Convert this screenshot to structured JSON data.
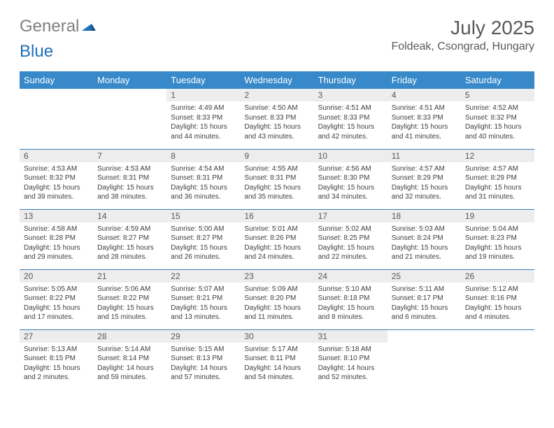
{
  "logo": {
    "gray": "General",
    "blue": "Blue"
  },
  "title": "July 2025",
  "location": "Foldeak, Csongrad, Hungary",
  "colors": {
    "header_bg": "#3789c9",
    "header_text": "#ffffff",
    "daynum_bg": "#ededed",
    "text_gray": "#595959",
    "border": "#3b7fb5",
    "logo_gray": "#808080",
    "logo_blue": "#1d6fb8"
  },
  "typography": {
    "title_fontsize": 28,
    "location_fontsize": 16,
    "weekday_fontsize": 13,
    "daynum_fontsize": 12,
    "body_fontsize": 10
  },
  "weekdays": [
    "Sunday",
    "Monday",
    "Tuesday",
    "Wednesday",
    "Thursday",
    "Friday",
    "Saturday"
  ],
  "weeks": [
    [
      null,
      null,
      {
        "n": "1",
        "sr": "Sunrise: 4:49 AM",
        "ss": "Sunset: 8:33 PM",
        "dl": "Daylight: 15 hours and 44 minutes."
      },
      {
        "n": "2",
        "sr": "Sunrise: 4:50 AM",
        "ss": "Sunset: 8:33 PM",
        "dl": "Daylight: 15 hours and 43 minutes."
      },
      {
        "n": "3",
        "sr": "Sunrise: 4:51 AM",
        "ss": "Sunset: 8:33 PM",
        "dl": "Daylight: 15 hours and 42 minutes."
      },
      {
        "n": "4",
        "sr": "Sunrise: 4:51 AM",
        "ss": "Sunset: 8:33 PM",
        "dl": "Daylight: 15 hours and 41 minutes."
      },
      {
        "n": "5",
        "sr": "Sunrise: 4:52 AM",
        "ss": "Sunset: 8:32 PM",
        "dl": "Daylight: 15 hours and 40 minutes."
      }
    ],
    [
      {
        "n": "6",
        "sr": "Sunrise: 4:53 AM",
        "ss": "Sunset: 8:32 PM",
        "dl": "Daylight: 15 hours and 39 minutes."
      },
      {
        "n": "7",
        "sr": "Sunrise: 4:53 AM",
        "ss": "Sunset: 8:31 PM",
        "dl": "Daylight: 15 hours and 38 minutes."
      },
      {
        "n": "8",
        "sr": "Sunrise: 4:54 AM",
        "ss": "Sunset: 8:31 PM",
        "dl": "Daylight: 15 hours and 36 minutes."
      },
      {
        "n": "9",
        "sr": "Sunrise: 4:55 AM",
        "ss": "Sunset: 8:31 PM",
        "dl": "Daylight: 15 hours and 35 minutes."
      },
      {
        "n": "10",
        "sr": "Sunrise: 4:56 AM",
        "ss": "Sunset: 8:30 PM",
        "dl": "Daylight: 15 hours and 34 minutes."
      },
      {
        "n": "11",
        "sr": "Sunrise: 4:57 AM",
        "ss": "Sunset: 8:29 PM",
        "dl": "Daylight: 15 hours and 32 minutes."
      },
      {
        "n": "12",
        "sr": "Sunrise: 4:57 AM",
        "ss": "Sunset: 8:29 PM",
        "dl": "Daylight: 15 hours and 31 minutes."
      }
    ],
    [
      {
        "n": "13",
        "sr": "Sunrise: 4:58 AM",
        "ss": "Sunset: 8:28 PM",
        "dl": "Daylight: 15 hours and 29 minutes."
      },
      {
        "n": "14",
        "sr": "Sunrise: 4:59 AM",
        "ss": "Sunset: 8:27 PM",
        "dl": "Daylight: 15 hours and 28 minutes."
      },
      {
        "n": "15",
        "sr": "Sunrise: 5:00 AM",
        "ss": "Sunset: 8:27 PM",
        "dl": "Daylight: 15 hours and 26 minutes."
      },
      {
        "n": "16",
        "sr": "Sunrise: 5:01 AM",
        "ss": "Sunset: 8:26 PM",
        "dl": "Daylight: 15 hours and 24 minutes."
      },
      {
        "n": "17",
        "sr": "Sunrise: 5:02 AM",
        "ss": "Sunset: 8:25 PM",
        "dl": "Daylight: 15 hours and 22 minutes."
      },
      {
        "n": "18",
        "sr": "Sunrise: 5:03 AM",
        "ss": "Sunset: 8:24 PM",
        "dl": "Daylight: 15 hours and 21 minutes."
      },
      {
        "n": "19",
        "sr": "Sunrise: 5:04 AM",
        "ss": "Sunset: 8:23 PM",
        "dl": "Daylight: 15 hours and 19 minutes."
      }
    ],
    [
      {
        "n": "20",
        "sr": "Sunrise: 5:05 AM",
        "ss": "Sunset: 8:22 PM",
        "dl": "Daylight: 15 hours and 17 minutes."
      },
      {
        "n": "21",
        "sr": "Sunrise: 5:06 AM",
        "ss": "Sunset: 8:22 PM",
        "dl": "Daylight: 15 hours and 15 minutes."
      },
      {
        "n": "22",
        "sr": "Sunrise: 5:07 AM",
        "ss": "Sunset: 8:21 PM",
        "dl": "Daylight: 15 hours and 13 minutes."
      },
      {
        "n": "23",
        "sr": "Sunrise: 5:09 AM",
        "ss": "Sunset: 8:20 PM",
        "dl": "Daylight: 15 hours and 11 minutes."
      },
      {
        "n": "24",
        "sr": "Sunrise: 5:10 AM",
        "ss": "Sunset: 8:18 PM",
        "dl": "Daylight: 15 hours and 8 minutes."
      },
      {
        "n": "25",
        "sr": "Sunrise: 5:11 AM",
        "ss": "Sunset: 8:17 PM",
        "dl": "Daylight: 15 hours and 6 minutes."
      },
      {
        "n": "26",
        "sr": "Sunrise: 5:12 AM",
        "ss": "Sunset: 8:16 PM",
        "dl": "Daylight: 15 hours and 4 minutes."
      }
    ],
    [
      {
        "n": "27",
        "sr": "Sunrise: 5:13 AM",
        "ss": "Sunset: 8:15 PM",
        "dl": "Daylight: 15 hours and 2 minutes."
      },
      {
        "n": "28",
        "sr": "Sunrise: 5:14 AM",
        "ss": "Sunset: 8:14 PM",
        "dl": "Daylight: 14 hours and 59 minutes."
      },
      {
        "n": "29",
        "sr": "Sunrise: 5:15 AM",
        "ss": "Sunset: 8:13 PM",
        "dl": "Daylight: 14 hours and 57 minutes."
      },
      {
        "n": "30",
        "sr": "Sunrise: 5:17 AM",
        "ss": "Sunset: 8:11 PM",
        "dl": "Daylight: 14 hours and 54 minutes."
      },
      {
        "n": "31",
        "sr": "Sunrise: 5:18 AM",
        "ss": "Sunset: 8:10 PM",
        "dl": "Daylight: 14 hours and 52 minutes."
      },
      null,
      null
    ]
  ]
}
